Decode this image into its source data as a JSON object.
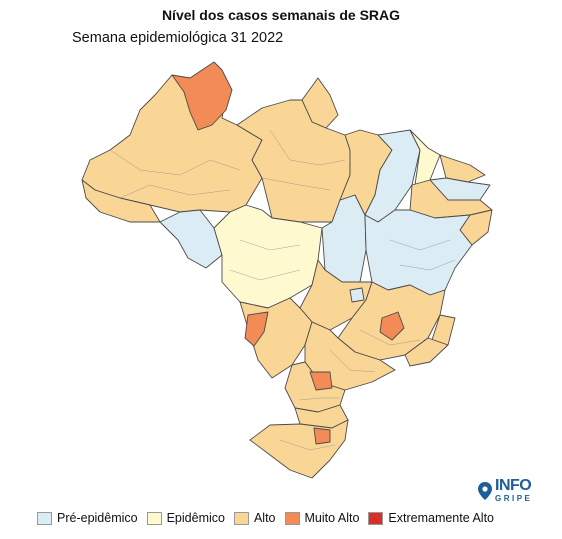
{
  "title": "Nível dos casos semanais de SRAG",
  "subtitle": "Semana epidemiológica 31 2022",
  "logo": {
    "line1": "INFO",
    "line2": "GRIPE"
  },
  "colors": {
    "pre_epidemico": "#dcecf4",
    "epidemico": "#fff9cf",
    "alto": "#fad696",
    "muito_alto": "#f38b57",
    "extremamente_alto": "#d6302a"
  },
  "legend": [
    {
      "label": "Pré-epidêmico",
      "color": "#dcecf4"
    },
    {
      "label": "Epidêmico",
      "color": "#fff9cf"
    },
    {
      "label": "Alto",
      "color": "#fad696"
    },
    {
      "label": "Muito Alto",
      "color": "#f38b57"
    },
    {
      "label": "Extremamente Alto",
      "color": "#d6302a"
    }
  ]
}
